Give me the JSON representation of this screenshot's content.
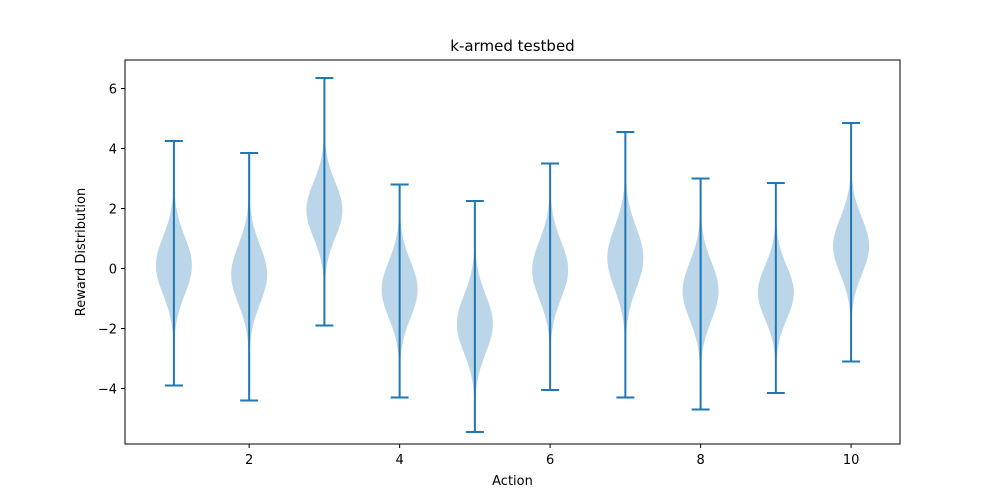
{
  "chart_data": {
    "type": "violin",
    "title": "k-armed testbed",
    "xlabel": "Action",
    "ylabel": "Reward Distribution",
    "xlim": [
      0.35,
      10.65
    ],
    "ylim": [
      -5.85,
      6.95
    ],
    "xticks": [
      2,
      4,
      6,
      8,
      10
    ],
    "yticks": [
      -4,
      -2,
      0,
      2,
      4,
      6
    ],
    "grid": false,
    "colors": {
      "body": "#1f77b4",
      "body_opacity": 0.3,
      "lines": "#1f77b4"
    },
    "violins": [
      {
        "action": 1,
        "center": 0.1,
        "min": -3.9,
        "max": 4.25,
        "body_low": -2.4,
        "body_high": 2.6
      },
      {
        "action": 2,
        "center": -0.2,
        "min": -4.4,
        "max": 3.85,
        "body_low": -2.75,
        "body_high": 2.3
      },
      {
        "action": 3,
        "center": 1.95,
        "min": -1.9,
        "max": 6.35,
        "body_low": -0.45,
        "body_high": 4.35
      },
      {
        "action": 4,
        "center": -0.7,
        "min": -4.3,
        "max": 2.8,
        "body_low": -3.2,
        "body_high": 1.7
      },
      {
        "action": 5,
        "center": -1.85,
        "min": -5.45,
        "max": 2.25,
        "body_low": -4.35,
        "body_high": 0.65
      },
      {
        "action": 6,
        "center": -0.05,
        "min": -4.05,
        "max": 3.5,
        "body_low": -2.55,
        "body_high": 2.45
      },
      {
        "action": 7,
        "center": 0.35,
        "min": -4.3,
        "max": 4.55,
        "body_low": -2.3,
        "body_high": 3.0
      },
      {
        "action": 8,
        "center": -0.75,
        "min": -4.7,
        "max": 3.0,
        "body_low": -3.3,
        "body_high": 1.7
      },
      {
        "action": 9,
        "center": -0.8,
        "min": -4.15,
        "max": 2.85,
        "body_low": -3.1,
        "body_high": 1.5
      },
      {
        "action": 10,
        "center": 0.75,
        "min": -3.1,
        "max": 4.85,
        "body_low": -1.6,
        "body_high": 3.25
      }
    ]
  }
}
